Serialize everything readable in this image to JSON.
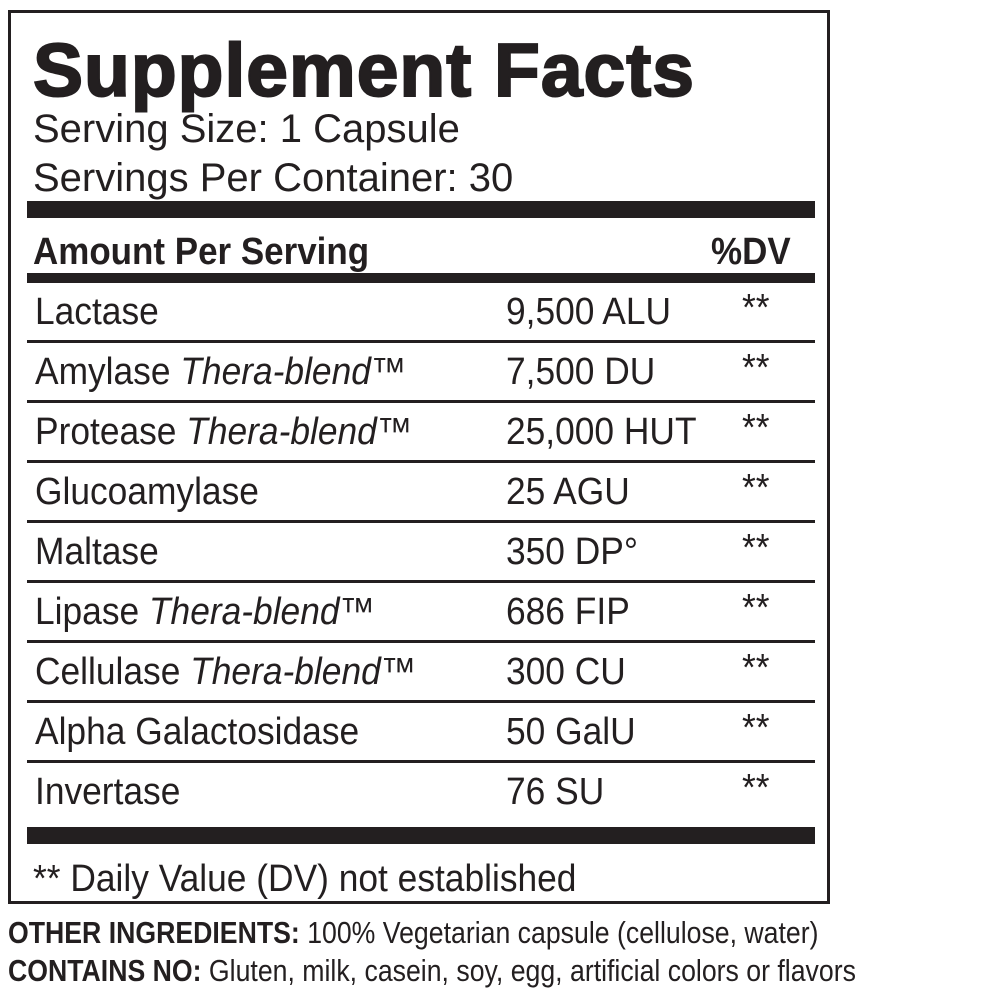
{
  "title": "Supplement Facts",
  "serving_size": "Serving Size: 1 Capsule",
  "servings_per_container": "Servings Per Container: 30",
  "header": {
    "amount": "Amount Per Serving",
    "dv": "%DV"
  },
  "rows": [
    {
      "name": "Lactase",
      "blend": "",
      "amount": "9,500 ALU",
      "dv": "**"
    },
    {
      "name": "Amylase ",
      "blend": "Thera-blend™",
      "amount": "7,500 DU",
      "dv": "**"
    },
    {
      "name": "Protease ",
      "blend": "Thera-blend™",
      "amount": "25,000 HUT",
      "dv": "**"
    },
    {
      "name": "Glucoamylase",
      "blend": "",
      "amount": "25 AGU",
      "dv": "**"
    },
    {
      "name": "Maltase",
      "blend": "",
      "amount": "350 DP°",
      "dv": "**"
    },
    {
      "name": "Lipase ",
      "blend": "Thera-blend™",
      "amount": "686 FIP",
      "dv": "**"
    },
    {
      "name": "Cellulase ",
      "blend": "Thera-blend™",
      "amount": "300 CU",
      "dv": "**"
    },
    {
      "name": "Alpha Galactosidase",
      "blend": "",
      "amount": "50 GalU",
      "dv": "**"
    },
    {
      "name": "Invertase",
      "blend": "",
      "amount": "76 SU",
      "dv": "**"
    }
  ],
  "footnote": "** Daily Value (DV) not established",
  "other_ingredients": {
    "label": "OTHER INGREDIENTS:",
    "text": " 100% Vegetarian capsule (cellulose, water)"
  },
  "contains_no": {
    "label": "CONTAINS NO:",
    "text": " Gluten, milk, casein, soy, egg, artificial colors or flavors"
  }
}
